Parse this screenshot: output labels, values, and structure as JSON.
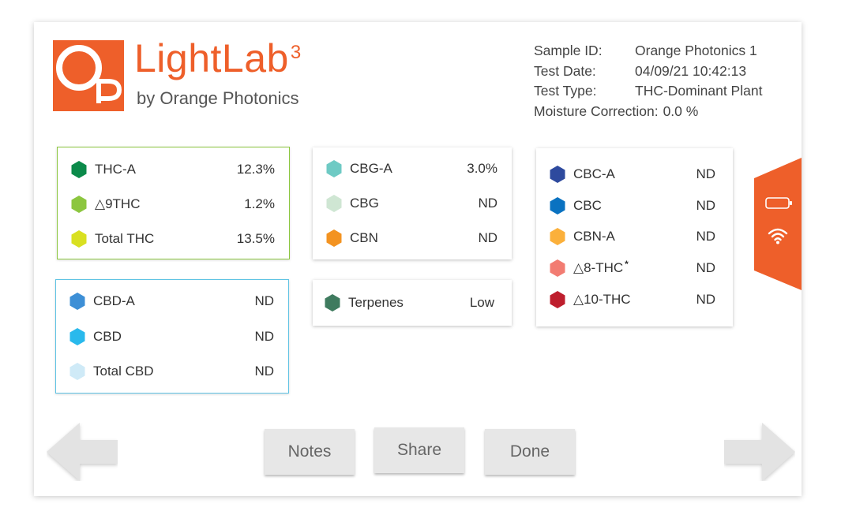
{
  "brand": {
    "mark_letters": "Op",
    "title": "LightLab",
    "title_superscript": "3",
    "subtitle": "by Orange Photonics",
    "color": "#ee5f2a"
  },
  "info": {
    "sample_id_label": "Sample ID:",
    "sample_id_value": "Orange Photonics 1",
    "test_date_label": "Test Date:",
    "test_date_value": "04/09/21 10:42:13",
    "test_type_label": "Test Type:",
    "test_type_value": "THC-Dominant Plant",
    "moisture_label": "Moisture Correction:",
    "moisture_value": "0.0 %"
  },
  "cards": {
    "thc": {
      "border_color": "#8cc63f",
      "rows": [
        {
          "name": "THC-A",
          "value": "12.3%",
          "color": "#0b8a4a"
        },
        {
          "name": "△9THC",
          "value": "1.2%",
          "color": "#8cc63f"
        },
        {
          "name": "Total THC",
          "value": "13.5%",
          "color": "#d9e021"
        }
      ]
    },
    "cbd": {
      "border_color": "#5fc3e4",
      "rows": [
        {
          "name": "CBD-A",
          "value": "ND",
          "color": "#3d8fd6"
        },
        {
          "name": "CBD",
          "value": "ND",
          "color": "#29b9ec"
        },
        {
          "name": "Total CBD",
          "value": "ND",
          "color": "#cfeaf7"
        }
      ]
    },
    "cbg": {
      "rows": [
        {
          "name": "CBG-A",
          "value": "3.0%",
          "color": "#6ecac4"
        },
        {
          "name": "CBG",
          "value": "ND",
          "color": "#cfe6d3"
        },
        {
          "name": "CBN",
          "value": "ND",
          "color": "#f39321"
        }
      ]
    },
    "terpenes": {
      "rows": [
        {
          "name": "Terpenes",
          "value": "Low",
          "color": "#3f7b5f"
        }
      ]
    },
    "minor": {
      "rows": [
        {
          "name": "CBC-A",
          "value": "ND",
          "color": "#2e4a9e"
        },
        {
          "name": "CBC",
          "value": "ND",
          "color": "#0a72c1"
        },
        {
          "name": "CBN-A",
          "value": "ND",
          "color": "#fbb03b"
        },
        {
          "name": "△8-THC",
          "value": "ND",
          "color": "#f27c72",
          "footnote": "*"
        },
        {
          "name": "△10-THC",
          "value": "ND",
          "color": "#be1e2d"
        }
      ]
    }
  },
  "side_tab": {
    "color": "#ee5f2a",
    "icons": [
      "battery-icon",
      "wifi-icon"
    ]
  },
  "buttons": {
    "notes": "Notes",
    "share": "Share",
    "done": "Done"
  },
  "nav": {
    "prev_icon": "arrow-left-icon",
    "next_icon": "arrow-right-icon"
  }
}
